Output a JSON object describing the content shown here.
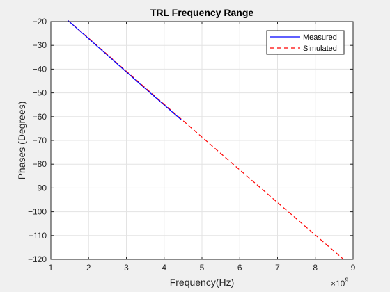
{
  "chart_data": {
    "type": "line",
    "title": "TRL Frequency Range",
    "xlabel": "Frequency(Hz)",
    "ylabel": "Phases (Degrees)",
    "x_multiplier_label": "×10",
    "x_multiplier_exponent": "9",
    "xlim": [
      1,
      9
    ],
    "ylim": [
      -120,
      -20
    ],
    "x_ticks": [
      1,
      2,
      3,
      4,
      5,
      6,
      7,
      8,
      9
    ],
    "y_ticks": [
      -20,
      -30,
      -40,
      -50,
      -60,
      -70,
      -80,
      -90,
      -100,
      -110,
      -120
    ],
    "grid": true,
    "legend_position": "top-right",
    "series": [
      {
        "name": "Measured",
        "color": "#0000ff",
        "line_style": "solid",
        "x": [
          1.45,
          2.0,
          2.5,
          3.0,
          3.5,
          4.0,
          4.45
        ],
        "y": [
          -19.5,
          -27.2,
          -34.2,
          -41.2,
          -48.2,
          -55.1,
          -61.3
        ]
      },
      {
        "name": "Simulated",
        "color": "#ff0000",
        "line_style": "dashed",
        "x": [
          1.45,
          2.0,
          3.0,
          4.0,
          5.0,
          6.0,
          7.0,
          8.0,
          8.75
        ],
        "y": [
          -19.5,
          -27.0,
          -40.9,
          -54.8,
          -68.6,
          -82.4,
          -96.1,
          -109.8,
          -120.0
        ]
      }
    ]
  }
}
